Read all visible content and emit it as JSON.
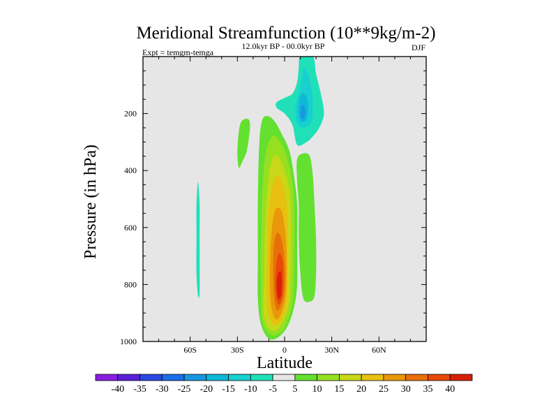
{
  "chart_data": {
    "type": "filled-contour",
    "title": "Meridional Streamfunction (10**9kg/m-2)",
    "left_string": "Expt = temgm-temga",
    "center_string": "12.0kyr BP - 00.0kyr BP",
    "right_string": "DJF",
    "xlabel": "Latitude",
    "ylabel": "Pressure (in hPa)",
    "xlim": [
      -90,
      90
    ],
    "ylim": [
      1000,
      0
    ],
    "x_ticks": [
      {
        "value": -60,
        "label": "60S"
      },
      {
        "value": -30,
        "label": "30S"
      },
      {
        "value": 0,
        "label": "0"
      },
      {
        "value": 30,
        "label": "30N"
      },
      {
        "value": 60,
        "label": "60N"
      }
    ],
    "y_ticks": [
      {
        "value": 200,
        "label": "200"
      },
      {
        "value": 400,
        "label": "400"
      },
      {
        "value": 600,
        "label": "600"
      },
      {
        "value": 800,
        "label": "800"
      },
      {
        "value": 1000,
        "label": "1000"
      }
    ],
    "colorbar": {
      "labels": [
        "-40",
        "-35",
        "-30",
        "-25",
        "-20",
        "-15",
        "-10",
        "-5",
        "5",
        "10",
        "15",
        "20",
        "25",
        "30",
        "35",
        "40"
      ],
      "colors": [
        "#8a1ee0",
        "#5a20d8",
        "#2a48e0",
        "#1a6ee8",
        "#1a96e0",
        "#10b8d8",
        "#18d0d0",
        "#20e0b8",
        "#e6e6e6",
        "#64e030",
        "#96e020",
        "#c8d818",
        "#e8c010",
        "#e89808",
        "#e87008",
        "#e84808",
        "#d82008"
      ]
    },
    "contours": [
      {
        "name": "positive-cell",
        "value": 5,
        "points": [
          [
            -10,
            990
          ],
          [
            -15,
            940
          ],
          [
            -17,
            850
          ],
          [
            -17,
            700
          ],
          [
            -17,
            500
          ],
          [
            -16,
            300
          ],
          [
            -14,
            220
          ],
          [
            -10,
            210
          ],
          [
            -6,
            230
          ],
          [
            -2,
            270
          ],
          [
            3,
            330
          ],
          [
            6,
            420
          ],
          [
            8,
            520
          ],
          [
            8,
            650
          ],
          [
            8,
            800
          ],
          [
            6,
            880
          ],
          [
            2,
            945
          ],
          [
            -4,
            985
          ]
        ]
      },
      {
        "name": "positive-cell",
        "value": 10,
        "points": [
          [
            -9,
            975
          ],
          [
            -14,
            930
          ],
          [
            -15,
            820
          ],
          [
            -15,
            640
          ],
          [
            -14,
            460
          ],
          [
            -12,
            340
          ],
          [
            -8,
            280
          ],
          [
            -4,
            290
          ],
          [
            0,
            330
          ],
          [
            4,
            410
          ],
          [
            6,
            520
          ],
          [
            6,
            700
          ],
          [
            5,
            860
          ],
          [
            0,
            950
          ],
          [
            -5,
            975
          ]
        ]
      },
      {
        "name": "positive-cell",
        "value": 15,
        "points": [
          [
            -8,
            960
          ],
          [
            -13,
            910
          ],
          [
            -13,
            760
          ],
          [
            -12,
            560
          ],
          [
            -10,
            420
          ],
          [
            -7,
            350
          ],
          [
            -3,
            360
          ],
          [
            1,
            420
          ],
          [
            4,
            520
          ],
          [
            4,
            720
          ],
          [
            3,
            860
          ],
          [
            -2,
            940
          ]
        ]
      },
      {
        "name": "positive-cell",
        "value": 20,
        "points": [
          [
            -7,
            940
          ],
          [
            -11,
            880
          ],
          [
            -11,
            720
          ],
          [
            -10,
            540
          ],
          [
            -7,
            440
          ],
          [
            -4,
            420
          ],
          [
            0,
            470
          ],
          [
            2,
            580
          ],
          [
            2,
            760
          ],
          [
            1,
            880
          ],
          [
            -3,
            930
          ]
        ]
      },
      {
        "name": "positive-cell",
        "value": 25,
        "points": [
          [
            -6,
            920
          ],
          [
            -9,
            850
          ],
          [
            -9,
            680
          ],
          [
            -7,
            560
          ],
          [
            -4,
            530
          ],
          [
            -1,
            560
          ],
          [
            1,
            660
          ],
          [
            1,
            820
          ],
          [
            -2,
            900
          ]
        ]
      },
      {
        "name": "positive-cell",
        "value": 30,
        "points": [
          [
            -5,
            890
          ],
          [
            -7,
            820
          ],
          [
            -7,
            680
          ],
          [
            -5,
            620
          ],
          [
            -2,
            640
          ],
          [
            0,
            720
          ],
          [
            0,
            820
          ],
          [
            -2,
            870
          ]
        ]
      },
      {
        "name": "positive-cell",
        "value": 35,
        "points": [
          [
            -4,
            870
          ],
          [
            -6,
            800
          ],
          [
            -5,
            720
          ],
          [
            -3,
            690
          ],
          [
            -1,
            730
          ],
          [
            -1,
            830
          ]
        ]
      },
      {
        "name": "positive-cell",
        "value": 40,
        "points": [
          [
            -4,
            850
          ],
          [
            -5,
            800
          ],
          [
            -4,
            760
          ],
          [
            -2,
            760
          ],
          [
            -2,
            830
          ]
        ]
      },
      {
        "name": "right-positive-strip",
        "value": 5,
        "points": [
          [
            8,
            360
          ],
          [
            12,
            340
          ],
          [
            16,
            350
          ],
          [
            18,
            420
          ],
          [
            19,
            520
          ],
          [
            20,
            640
          ],
          [
            20,
            760
          ],
          [
            19,
            840
          ],
          [
            16,
            860
          ],
          [
            12,
            850
          ],
          [
            10,
            760
          ],
          [
            9,
            640
          ],
          [
            9,
            520
          ],
          [
            8,
            440
          ]
        ]
      },
      {
        "name": "left-positive-patch",
        "value": 5,
        "points": [
          [
            -29,
            260
          ],
          [
            -27,
            225
          ],
          [
            -23,
            220
          ],
          [
            -22,
            250
          ],
          [
            -24,
            330
          ],
          [
            -27,
            370
          ],
          [
            -29,
            390
          ],
          [
            -30,
            340
          ]
        ]
      },
      {
        "name": "upper-negative-cell",
        "value": -5,
        "points": [
          [
            10,
            0
          ],
          [
            18,
            0
          ],
          [
            20,
            60
          ],
          [
            23,
            130
          ],
          [
            25,
            200
          ],
          [
            22,
            250
          ],
          [
            18,
            280
          ],
          [
            14,
            300
          ],
          [
            8,
            310
          ],
          [
            5,
            240
          ],
          [
            0,
            200
          ],
          [
            -5,
            180
          ],
          [
            -5,
            160
          ],
          [
            0,
            145
          ],
          [
            5,
            130
          ],
          [
            8,
            90
          ],
          [
            9,
            40
          ]
        ]
      },
      {
        "name": "upper-negative-cell",
        "value": -10,
        "points": [
          [
            12,
            40
          ],
          [
            15,
            60
          ],
          [
            17,
            110
          ],
          [
            18,
            170
          ],
          [
            17,
            230
          ],
          [
            12,
            250
          ],
          [
            8,
            235
          ],
          [
            7,
            180
          ],
          [
            9,
            130
          ],
          [
            11,
            80
          ]
        ]
      },
      {
        "name": "upper-negative-cell",
        "value": -15,
        "points": [
          [
            11,
            130
          ],
          [
            14,
            140
          ],
          [
            15,
            180
          ],
          [
            14,
            220
          ],
          [
            11,
            230
          ],
          [
            9,
            210
          ],
          [
            9,
            160
          ]
        ]
      },
      {
        "name": "upper-negative-cell",
        "value": -20,
        "points": [
          [
            11,
            170
          ],
          [
            13,
            180
          ],
          [
            13,
            210
          ],
          [
            11,
            220
          ],
          [
            10,
            200
          ]
        ]
      },
      {
        "name": "left-negative-strip",
        "value": -5,
        "points": [
          [
            -55,
            440
          ],
          [
            -54,
            520
          ],
          [
            -54,
            620
          ],
          [
            -54,
            720
          ],
          [
            -54,
            830
          ],
          [
            -55,
            840
          ],
          [
            -56,
            760
          ],
          [
            -56,
            620
          ],
          [
            -56,
            520
          ]
        ]
      }
    ]
  }
}
